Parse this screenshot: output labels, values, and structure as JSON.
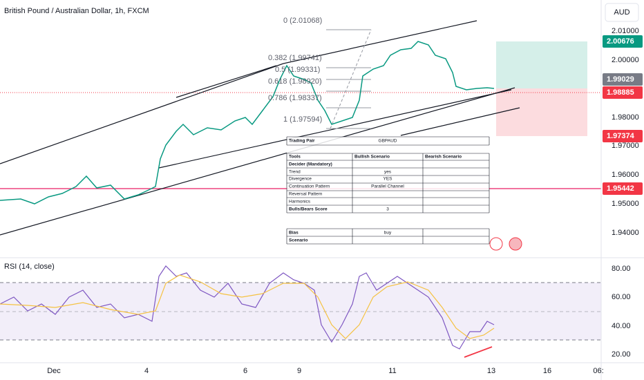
{
  "header": {
    "title": "British Pound / Australian Dollar, 1h, FXCM",
    "currency": "AUD"
  },
  "price_axis": {
    "labels": [
      "2.01000",
      "2.00000",
      "1.98000",
      "1.97000",
      "1.96000",
      "1.95000",
      "1.94000"
    ],
    "tags": [
      {
        "text": "2.00676",
        "color": "#089981"
      },
      {
        "text": "1.99029",
        "color": "#787b86"
      },
      {
        "text": "1.98885",
        "color": "#f23645"
      },
      {
        "text": "1.97374",
        "color": "#f23645"
      },
      {
        "text": "1.95442",
        "color": "#f23645"
      }
    ]
  },
  "fib_levels": [
    "0 (2.01068)",
    "0.382 (1.99741)",
    "0.5 (1.99331)",
    "0.618 (1.98920)",
    "0.786 (1.98337)",
    "1 (1.97594)"
  ],
  "table": {
    "pair": [
      "Trading Pair",
      "GBPAUD"
    ],
    "header": [
      "Tools",
      "Bullish Scenario",
      "Bearish Scenario"
    ],
    "rows": [
      [
        "Decider (Mandatory)"
      ],
      [
        "Trend",
        "yes"
      ],
      [
        "Divergence",
        "YES"
      ],
      [
        "Continuation Pattern",
        "Parallel Channel"
      ],
      [
        "Reversal Pattern"
      ],
      [
        "Harmonics"
      ],
      [
        "Bulls/Bears Score",
        "3"
      ],
      [
        "Bias",
        "buy"
      ],
      [
        "Scenario"
      ]
    ]
  },
  "rsi": {
    "title": "RSI (14, close)",
    "labels": [
      "80.00",
      "60.00",
      "40.00",
      "20.00"
    ]
  },
  "time_axis": {
    "labels": [
      "Dec",
      "4",
      "6",
      "9",
      "11",
      "13",
      "16",
      "06:"
    ]
  }
}
